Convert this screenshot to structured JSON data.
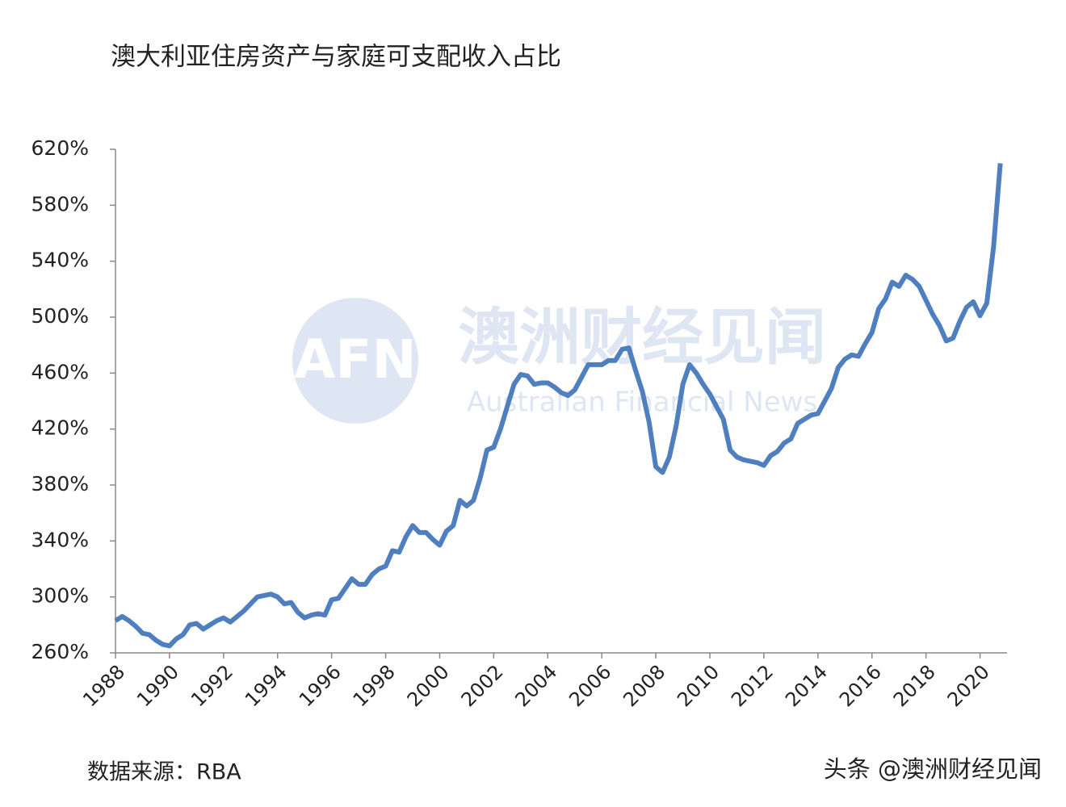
{
  "chart_data": {
    "type": "line",
    "title": "澳大利亚住房资产与家庭可支配收入占比",
    "source": "数据来源：RBA",
    "credit": "头条 @澳洲财经见闻",
    "watermark": {
      "logo": "AFN",
      "name": "澳洲财经见闻",
      "subtitle": "Australian Financial News"
    },
    "x": [
      1988,
      1988.25,
      1988.5,
      1988.75,
      1989,
      1989.25,
      1989.5,
      1989.75,
      1990,
      1990.25,
      1990.5,
      1990.75,
      1991,
      1991.25,
      1991.5,
      1991.75,
      1992,
      1992.25,
      1992.5,
      1992.75,
      1993,
      1993.25,
      1993.5,
      1993.75,
      1994,
      1994.25,
      1994.5,
      1994.75,
      1995,
      1995.25,
      1995.5,
      1995.75,
      1996,
      1996.25,
      1996.5,
      1996.75,
      1997,
      1997.25,
      1997.5,
      1997.75,
      1998,
      1998.25,
      1998.5,
      1998.75,
      1999,
      1999.25,
      1999.5,
      1999.75,
      2000,
      2000.25,
      2000.5,
      2000.75,
      2001,
      2001.25,
      2001.5,
      2001.75,
      2002,
      2002.25,
      2002.5,
      2002.75,
      2003,
      2003.25,
      2003.5,
      2003.75,
      2004,
      2004.25,
      2004.5,
      2004.75,
      2005,
      2005.25,
      2005.5,
      2005.75,
      2006,
      2006.25,
      2006.5,
      2006.75,
      2007,
      2007.25,
      2007.5,
      2007.75,
      2008,
      2008.25,
      2008.5,
      2008.75,
      2009,
      2009.25,
      2009.5,
      2009.75,
      2010,
      2010.25,
      2010.5,
      2010.75,
      2011,
      2011.25,
      2011.5,
      2011.75,
      2012,
      2012.25,
      2012.5,
      2012.75,
      2013,
      2013.25,
      2013.5,
      2013.75,
      2014,
      2014.25,
      2014.5,
      2014.75,
      2015,
      2015.25,
      2015.5,
      2015.75,
      2016,
      2016.25,
      2016.5,
      2016.75,
      2017,
      2017.25,
      2017.5,
      2017.75,
      2018,
      2018.25,
      2018.5,
      2018.75,
      2019,
      2019.25,
      2019.5,
      2019.75,
      2020,
      2020.25,
      2020.5,
      2020.75
    ],
    "series": [
      {
        "color": "#4f7fbf",
        "values": [
          283,
          286,
          283,
          279,
          274,
          273,
          269,
          266,
          265,
          270,
          273,
          280,
          281,
          277,
          280,
          283,
          285,
          282,
          286,
          290,
          295,
          300,
          301,
          302,
          300,
          295,
          296,
          289,
          285,
          287,
          288,
          287,
          298,
          299,
          306,
          313,
          309,
          309,
          316,
          320,
          322,
          333,
          332,
          343,
          351,
          346,
          346,
          341,
          337,
          347,
          351,
          369,
          365,
          369,
          385,
          405,
          407,
          420,
          436,
          452,
          459,
          458,
          452,
          453,
          453,
          450,
          446,
          444,
          448,
          457,
          466,
          466,
          466,
          469,
          469,
          477,
          478,
          462,
          447,
          425,
          393,
          389,
          400,
          422,
          452,
          466,
          460,
          452,
          445,
          436,
          427,
          405,
          400,
          398,
          397,
          396,
          394,
          401,
          404,
          410,
          413,
          424,
          427,
          430,
          431,
          440,
          449,
          464,
          470,
          473,
          472,
          481,
          489,
          506,
          513,
          525,
          522,
          530,
          527,
          522,
          512,
          502,
          494,
          483,
          485,
          497,
          507,
          511,
          501,
          510,
          550,
          610
        ]
      }
    ],
    "xlim": [
      1988,
      2021
    ],
    "xticks": [
      1988,
      1990,
      1992,
      1994,
      1996,
      1998,
      2000,
      2002,
      2004,
      2006,
      2008,
      2010,
      2012,
      2014,
      2016,
      2018,
      2020
    ],
    "ylim": [
      260,
      620
    ],
    "yticks": [
      {
        "value": 260,
        "label": "260%"
      },
      {
        "value": 300,
        "label": "300%"
      },
      {
        "value": 340,
        "label": "340%"
      },
      {
        "value": 380,
        "label": "380%"
      },
      {
        "value": 420,
        "label": "420%"
      },
      {
        "value": 460,
        "label": "460%"
      },
      {
        "value": 500,
        "label": "500%"
      },
      {
        "value": 540,
        "label": "540%"
      },
      {
        "value": 580,
        "label": "580%"
      },
      {
        "value": 620,
        "label": "620%"
      }
    ]
  }
}
